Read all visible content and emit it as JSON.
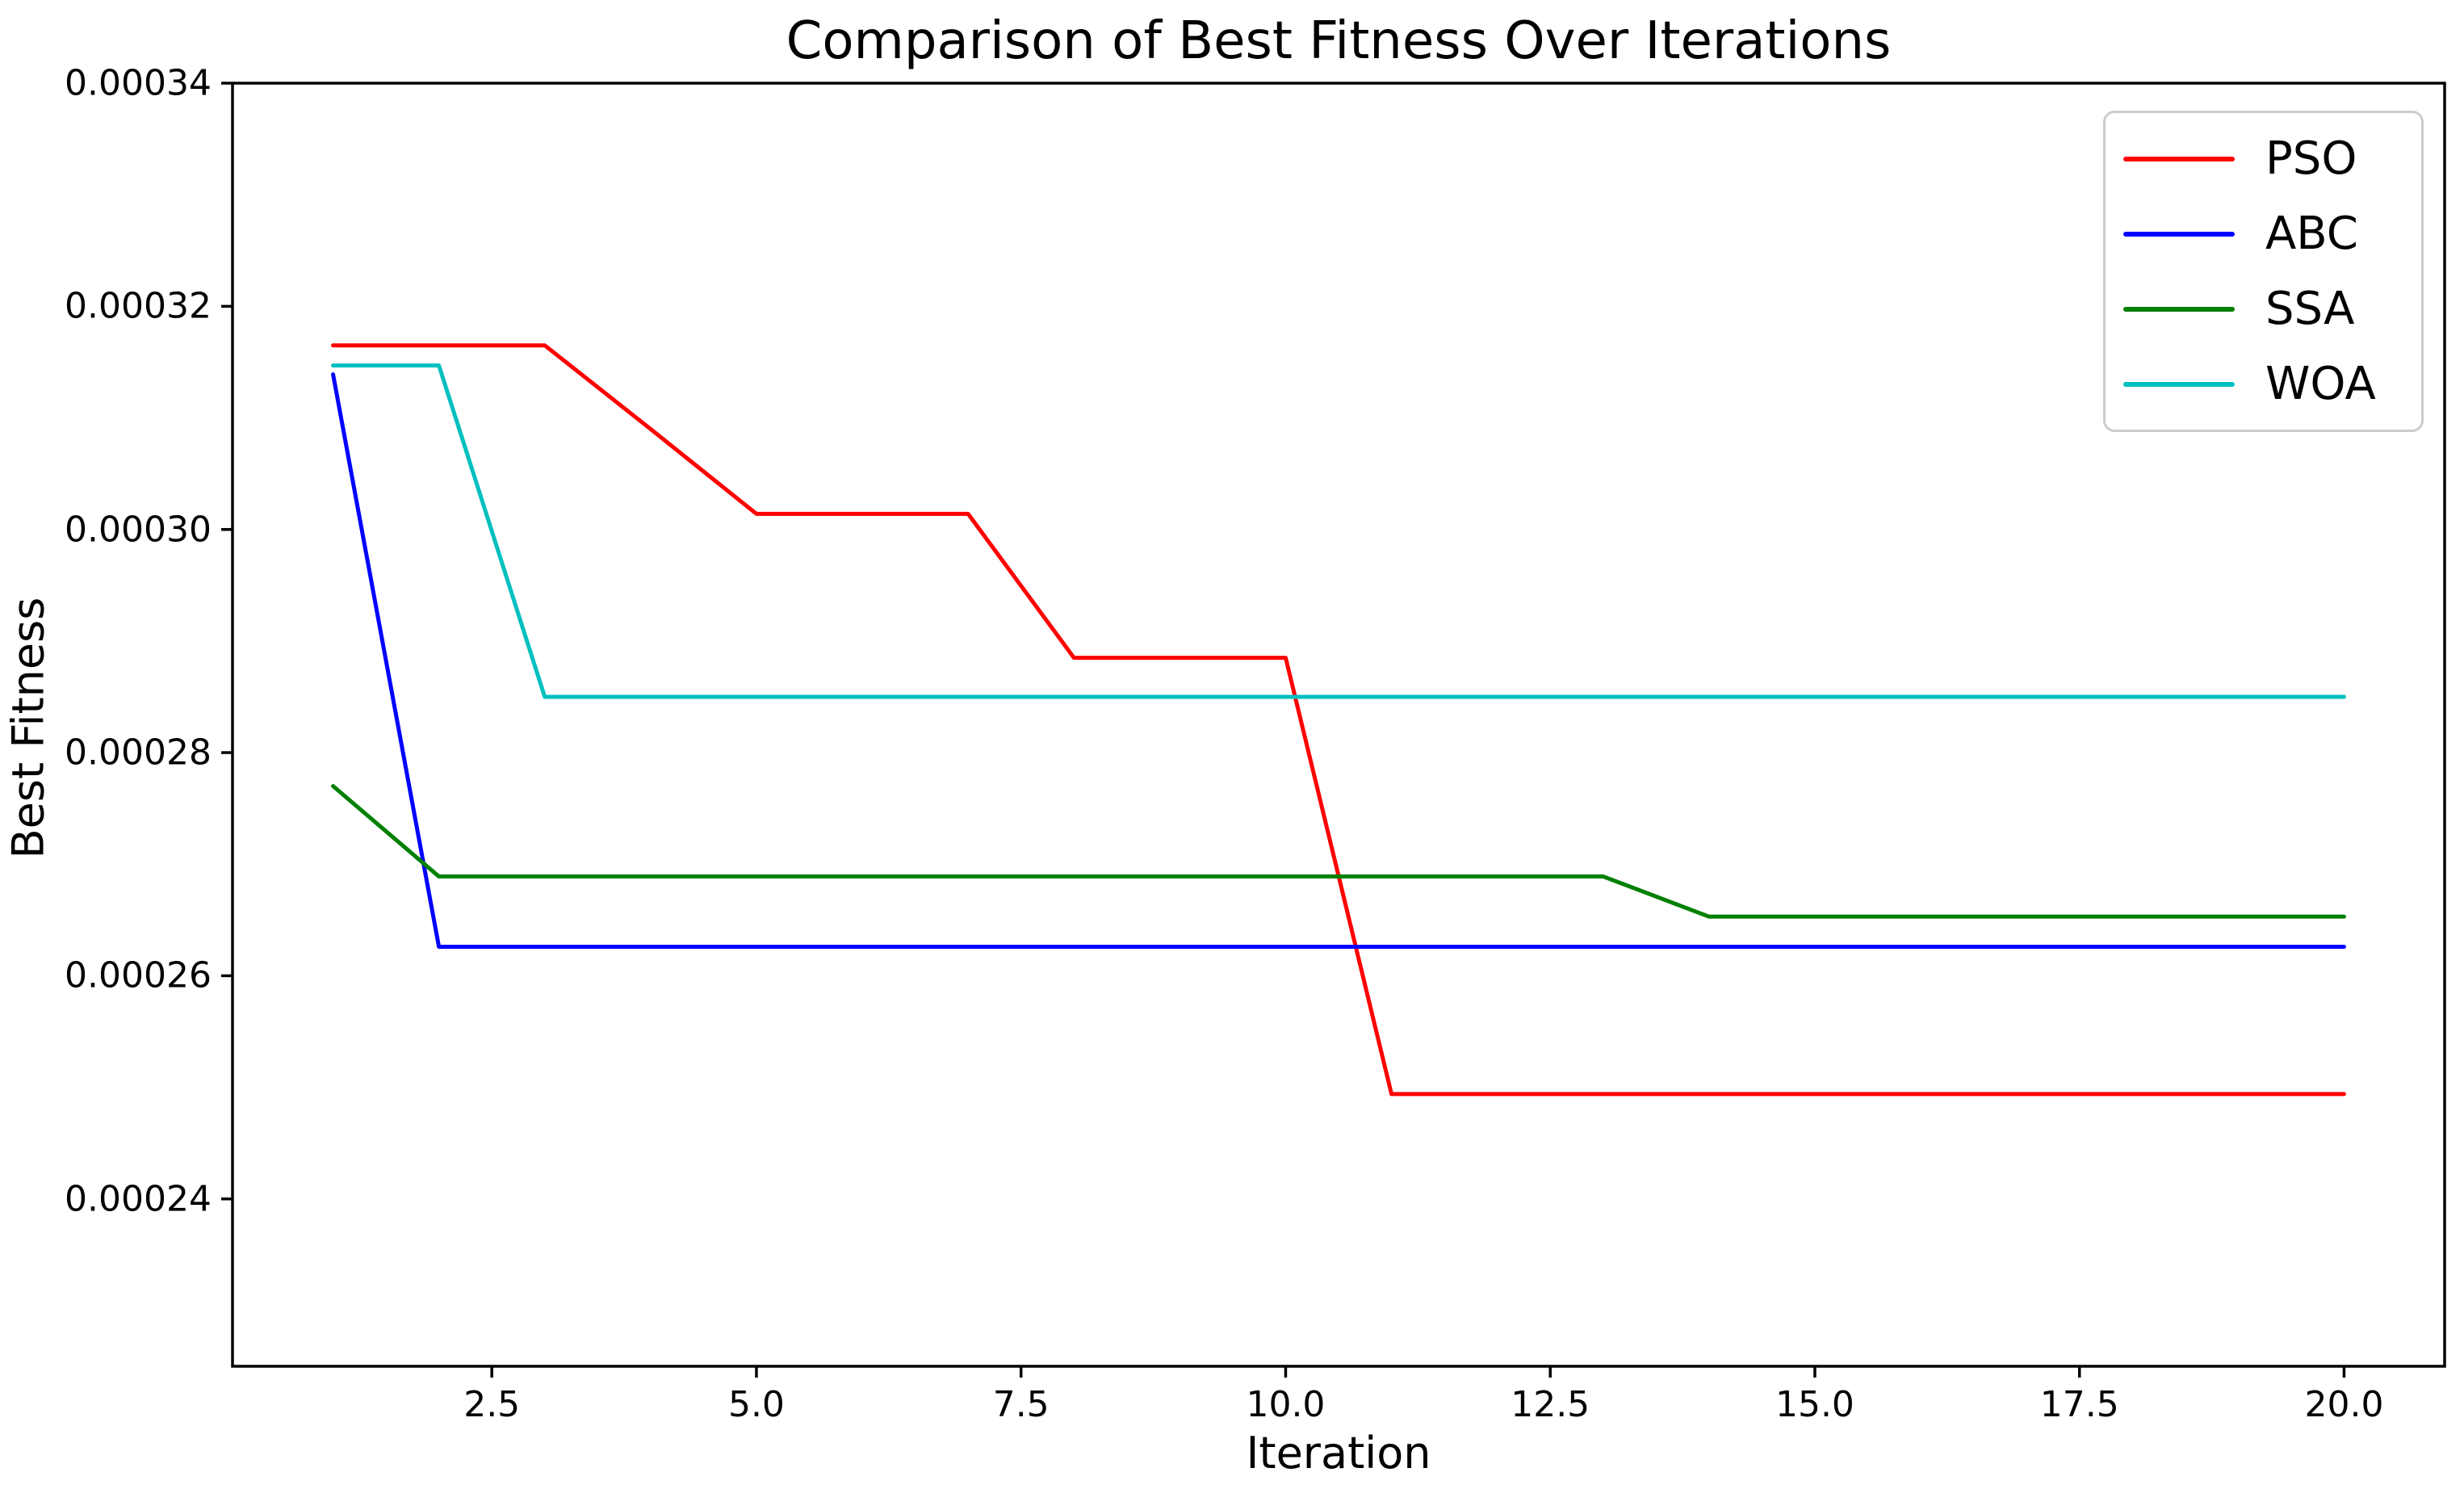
{
  "chart_data": {
    "type": "line",
    "title": "Comparison of Best Fitness Over Iterations",
    "xlabel": "Iteration",
    "ylabel": "Best Fitness",
    "xlim": [
      0.05,
      20.95
    ],
    "ylim": [
      0.000225,
      0.00034
    ],
    "grid": false,
    "legend_position": "upper right",
    "x_ticks": [
      2.5,
      5.0,
      7.5,
      10.0,
      12.5,
      15.0,
      17.5,
      20.0
    ],
    "x_tick_labels": [
      "2.5",
      "5.0",
      "7.5",
      "10.0",
      "12.5",
      "15.0",
      "17.5",
      "20.0"
    ],
    "y_ticks": [
      0.00024,
      0.00026,
      0.00028,
      0.0003,
      0.00032,
      0.00034
    ],
    "y_tick_labels": [
      "0.00024",
      "0.00026",
      "0.00028",
      "0.00030",
      "0.00032",
      "0.00034"
    ],
    "x": [
      1,
      2,
      3,
      4,
      5,
      6,
      7,
      8,
      9,
      10,
      11,
      12,
      13,
      14,
      15,
      16,
      17,
      18,
      19,
      20
    ],
    "series": [
      {
        "name": "PSO",
        "color": "#ff0000",
        "values": [
          0.0003165,
          0.0003165,
          0.0003165,
          0.000309,
          0.0003014,
          0.0003014,
          0.0003014,
          0.0002885,
          0.0002885,
          0.0002885,
          0.0002494,
          0.0002494,
          0.0002494,
          0.0002494,
          0.0002494,
          0.0002494,
          0.0002494,
          0.0002494,
          0.0002494,
          0.0002494
        ]
      },
      {
        "name": "ABC",
        "color": "#0000ff",
        "values": [
          0.0003139,
          0.0002626,
          0.0002626,
          0.0002626,
          0.0002626,
          0.0002626,
          0.0002626,
          0.0002626,
          0.0002626,
          0.0002626,
          0.0002626,
          0.0002626,
          0.0002626,
          0.0002626,
          0.0002626,
          0.0002626,
          0.0002626,
          0.0002626,
          0.0002626,
          0.0002626
        ]
      },
      {
        "name": "SSA",
        "color": "#008000",
        "values": [
          0.000277,
          0.0002689,
          0.0002689,
          0.0002689,
          0.0002689,
          0.0002689,
          0.0002689,
          0.0002689,
          0.0002689,
          0.0002689,
          0.0002689,
          0.0002689,
          0.0002689,
          0.0002653,
          0.0002653,
          0.0002653,
          0.0002653,
          0.0002653,
          0.0002653,
          0.0002653
        ]
      },
      {
        "name": "WOA",
        "color": "#00bfbf",
        "values": [
          0.0003147,
          0.0003147,
          0.000285,
          0.000285,
          0.000285,
          0.000285,
          0.000285,
          0.000285,
          0.000285,
          0.000285,
          0.000285,
          0.000285,
          0.000285,
          0.000285,
          0.000285,
          0.000285,
          0.000285,
          0.000285,
          0.000285,
          0.000285
        ]
      }
    ],
    "axis_color": "#000000",
    "background_color": "#ffffff"
  }
}
